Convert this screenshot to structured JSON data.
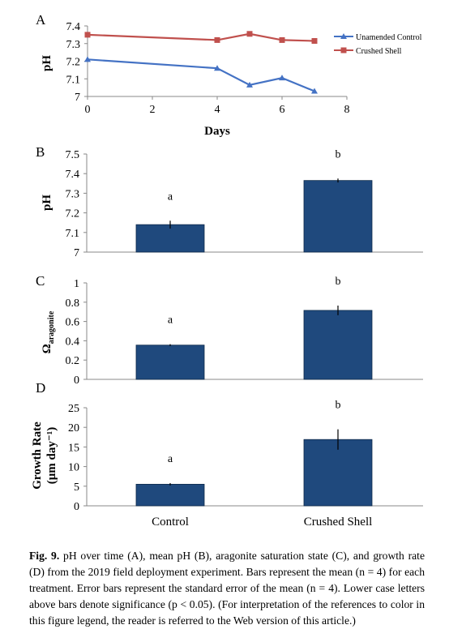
{
  "colors": {
    "unamended": "#4472C4",
    "crushed": "#C0504D",
    "bar": "#1F497D"
  },
  "caption": {
    "label": "Fig. 9.",
    "text": "pH over time (A), mean pH (B), aragonite saturation state (C), and growth rate (D) from the 2019 field deployment experiment. Bars represent the mean (n = 4) for each treatment. Error bars represent the standard error of the mean (n = 4). Lower case letters above bars denote significance (p < 0.05). (For interpretation of the references to color in this figure legend, the reader is referred to the Web version of this article.)"
  },
  "chart_data": [
    {
      "panel": "A",
      "type": "line",
      "xlabel": "Days",
      "ylabel": "pH",
      "xlim": [
        0,
        8
      ],
      "ylim": [
        7,
        7.4
      ],
      "xticks": [
        "0",
        "2",
        "4",
        "6",
        "8"
      ],
      "yticks": [
        "7",
        "7.1",
        "7.2",
        "7.3",
        "7.4"
      ],
      "legend_position": "right",
      "series": [
        {
          "name": "Unamended Control",
          "marker": "triangle",
          "x": [
            0,
            4,
            5,
            6,
            7
          ],
          "y": [
            7.21,
            7.16,
            7.065,
            7.105,
            7.03
          ]
        },
        {
          "name": "Crushed Shell",
          "marker": "square",
          "x": [
            0,
            4,
            5,
            6,
            7
          ],
          "y": [
            7.35,
            7.32,
            7.355,
            7.32,
            7.315
          ]
        }
      ]
    },
    {
      "panel": "B",
      "type": "bar",
      "ylabel": "pH",
      "ylim": [
        7,
        7.5
      ],
      "yticks": [
        "7",
        "7.1",
        "7.2",
        "7.3",
        "7.4",
        "7.5"
      ],
      "categories": [
        "Control",
        "Crushed Shell"
      ],
      "values": [
        7.14,
        7.365
      ],
      "errors": [
        0.02,
        0.01
      ],
      "letters": [
        "a",
        "b"
      ]
    },
    {
      "panel": "C",
      "type": "bar",
      "ylabel": "Ω",
      "ylabel_sub": "aragonite",
      "ylim": [
        0,
        1
      ],
      "yticks": [
        "0",
        "0.2",
        "0.4",
        "0.6",
        "0.8",
        "1"
      ],
      "categories": [
        "Control",
        "Crushed Shell"
      ],
      "values": [
        0.355,
        0.715
      ],
      "errors": [
        0.01,
        0.05
      ],
      "letters": [
        "a",
        "b"
      ]
    },
    {
      "panel": "D",
      "type": "bar",
      "ylabel_line1": "Growth Rate",
      "ylabel_line2": "(μm day⁻¹)",
      "ylim": [
        0,
        25
      ],
      "yticks": [
        "0",
        "5",
        "10",
        "15",
        "20",
        "25"
      ],
      "categories": [
        "Control",
        "Crushed Shell"
      ],
      "values": [
        5.5,
        16.9
      ],
      "errors": [
        0.3,
        2.6
      ],
      "letters": [
        "a",
        "b"
      ]
    }
  ]
}
